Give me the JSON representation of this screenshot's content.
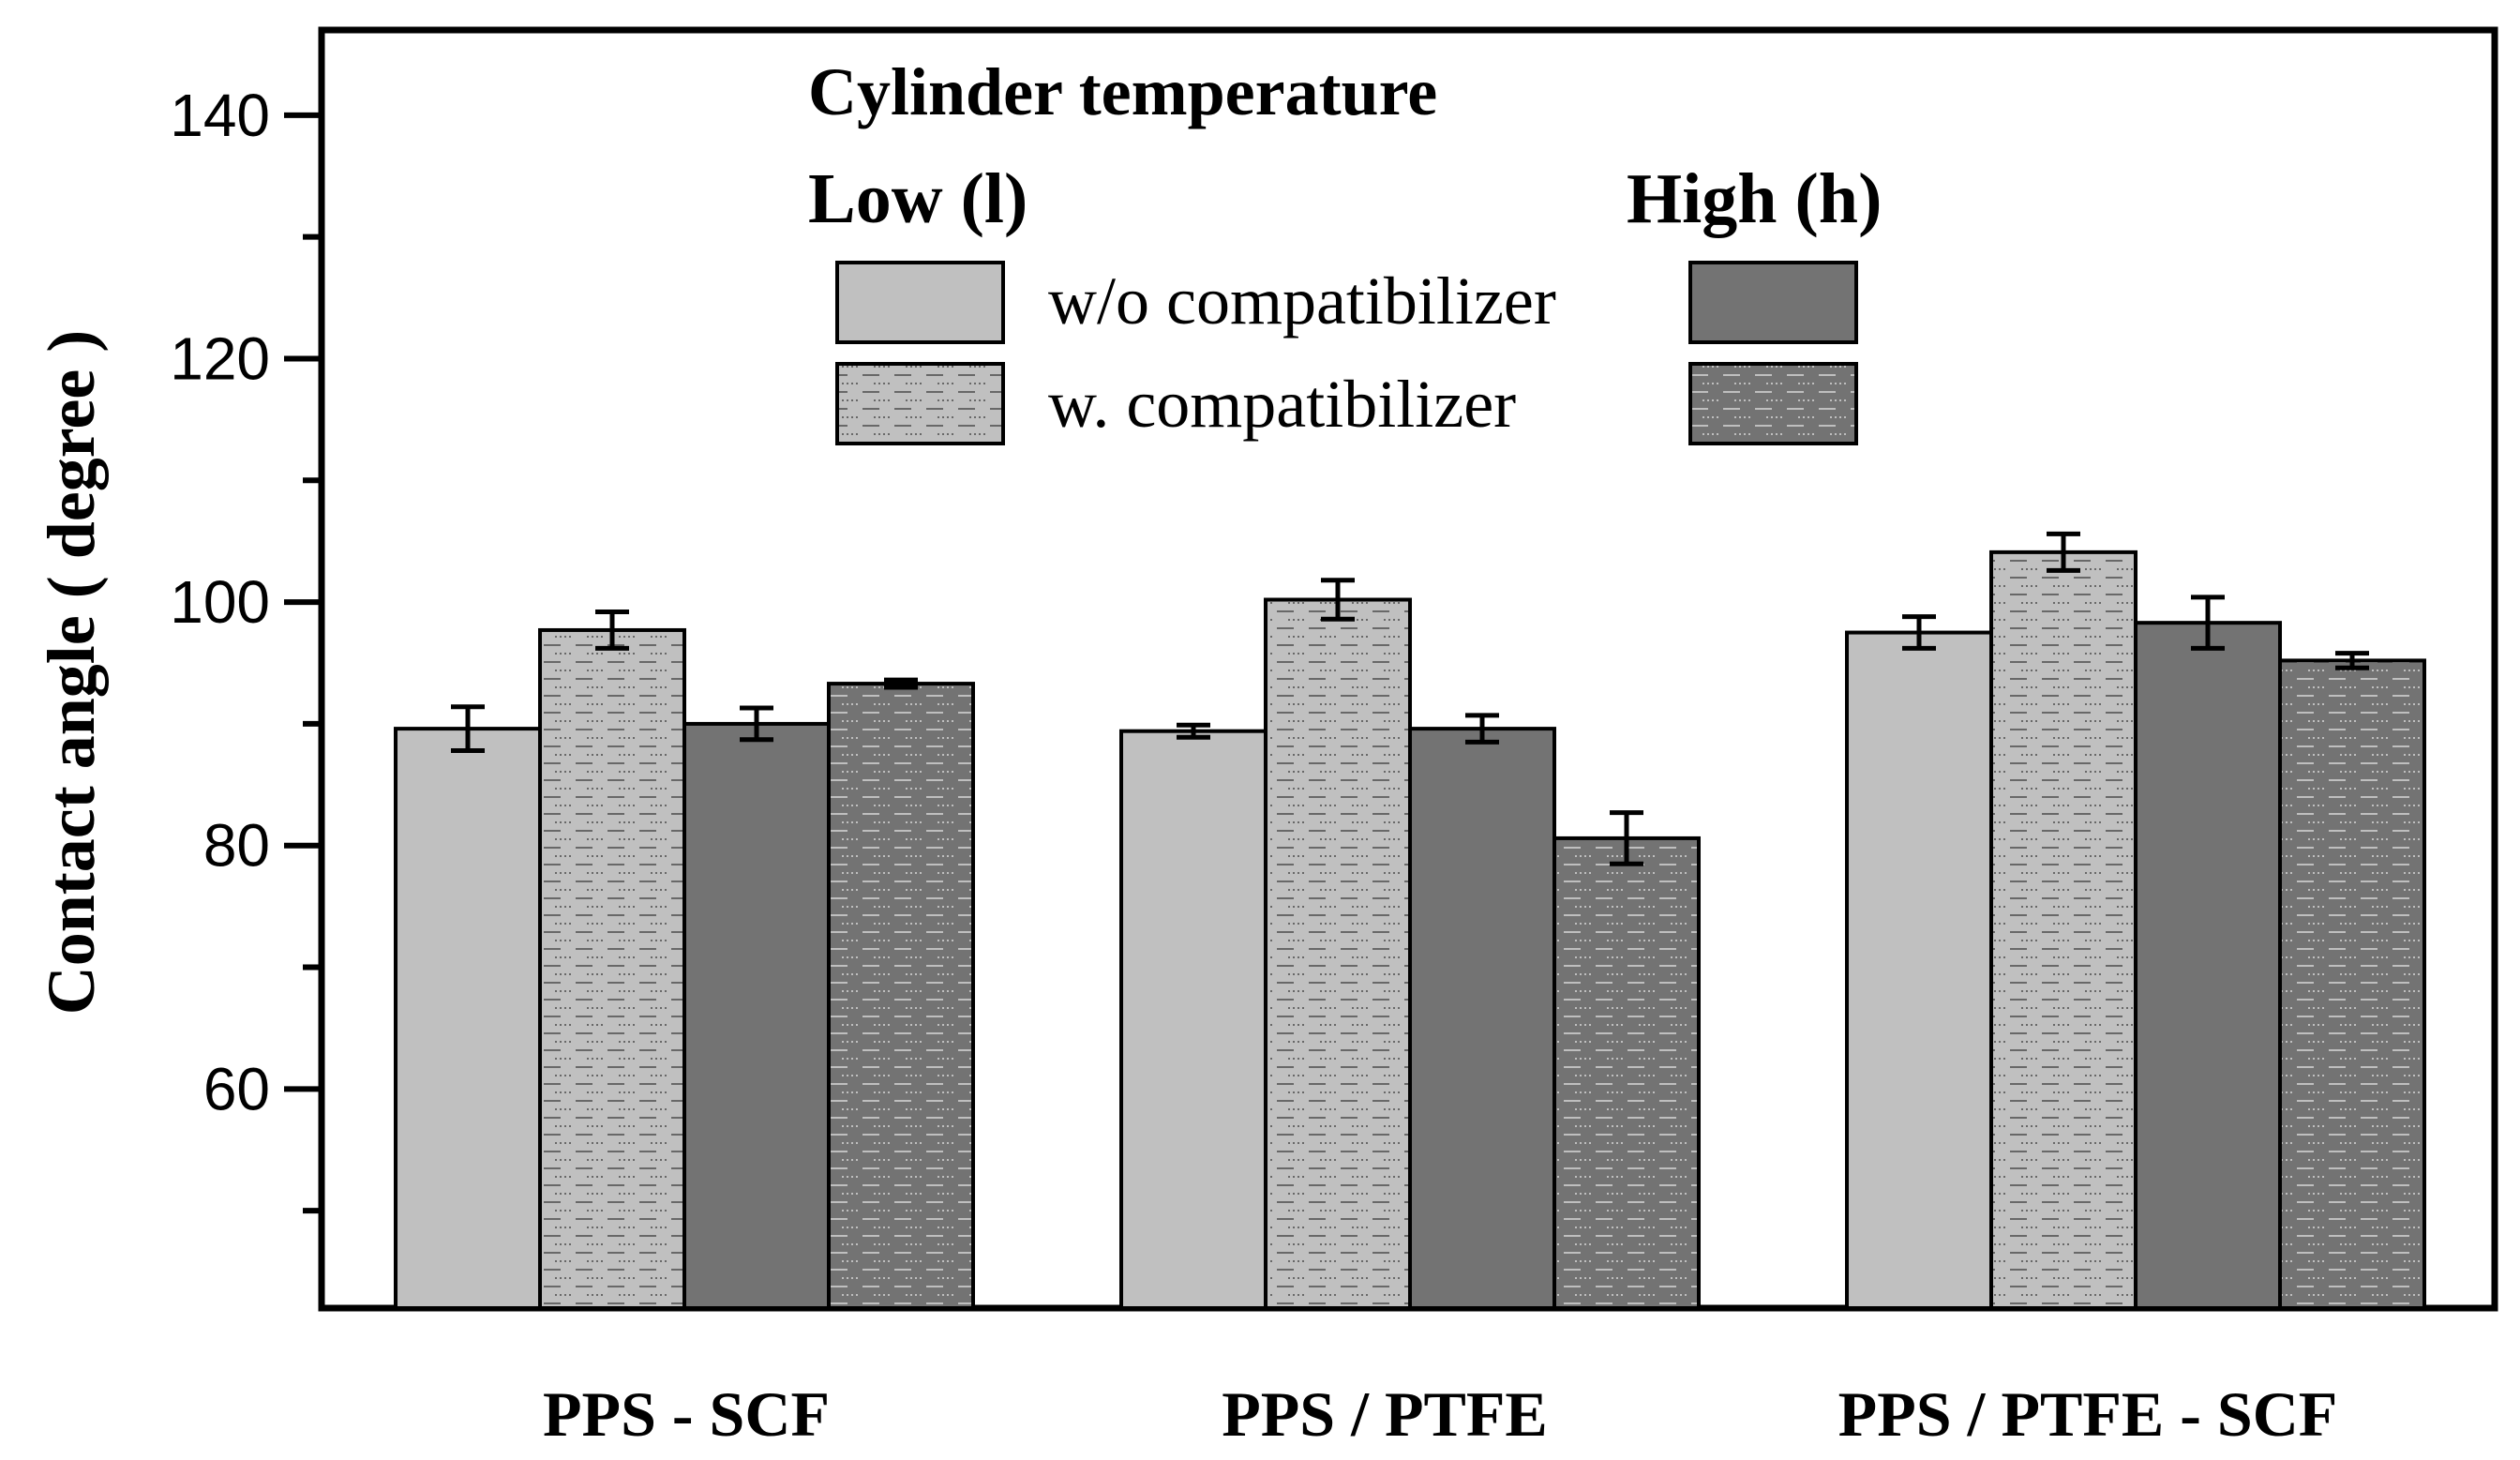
{
  "chart_data": {
    "type": "bar",
    "title": "",
    "xlabel": "",
    "ylabel": "Contact angle ( degree )",
    "ylim": [
      42,
      147
    ],
    "yticks": [
      60,
      80,
      100,
      120,
      140
    ],
    "categories": [
      "PPS - SCF",
      "PPS / PTFE",
      "PPS / PTFE - SCF"
    ],
    "series": [
      {
        "name": "Low (l) w/o compatibilizer",
        "values": [
          89.6,
          89.4,
          97.5
        ],
        "errors": [
          1.8,
          0.5,
          1.3
        ],
        "color": "#c0c0c0",
        "pattern": "solid"
      },
      {
        "name": "Low (l) w. compatibilizer",
        "values": [
          97.7,
          100.2,
          104.1
        ],
        "errors": [
          1.5,
          1.6,
          1.5
        ],
        "color": "#c0c0c0",
        "pattern": "dashed"
      },
      {
        "name": "High (h) w/o compatibilizer",
        "values": [
          90.0,
          89.6,
          98.3
        ],
        "errors": [
          1.3,
          1.1,
          2.1
        ],
        "color": "#737373",
        "pattern": "solid"
      },
      {
        "name": "High (h) w. compatibilizer",
        "values": [
          93.3,
          80.6,
          95.2
        ],
        "errors": [
          0.3,
          2.1,
          0.6
        ],
        "color": "#737373",
        "pattern": "dashed"
      }
    ],
    "legend": {
      "title": "Cylinder temperature",
      "group_low": "Low (l)",
      "group_high": "High (h)",
      "row_1": "w/o compatibilizer",
      "row_2": "w. compatibilizer",
      "placement": "top-center"
    }
  }
}
